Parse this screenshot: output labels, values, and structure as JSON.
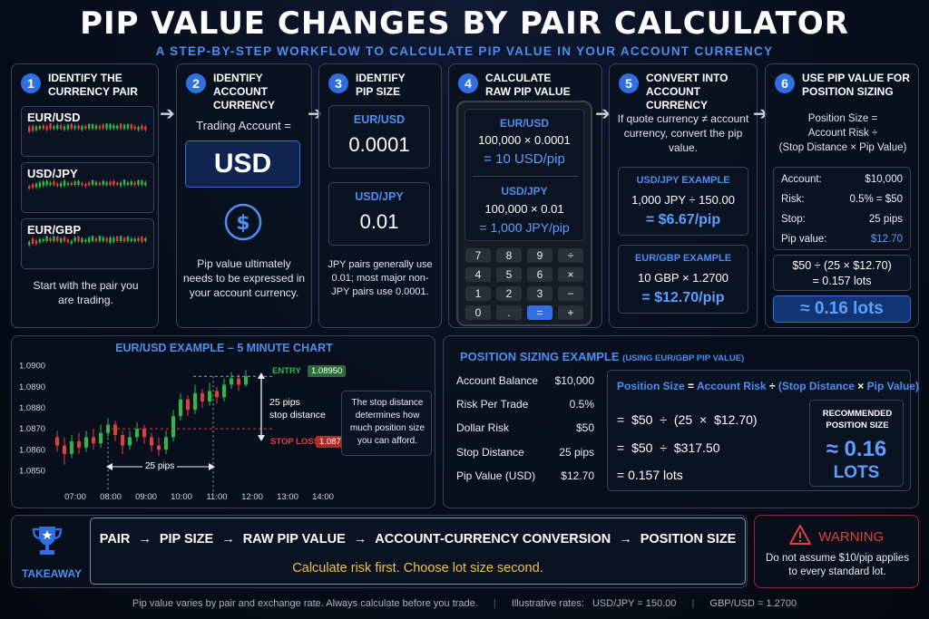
{
  "title": "PIP VALUE CHANGES BY PAIR CALCULATOR",
  "subtitle": "A STEP-BY-STEP WORKFLOW TO CALCULATE PIP VALUE IN YOUR ACCOUNT CURRENCY",
  "steps": [
    {
      "num": "1",
      "title": "IDENTIFY THE\nCURRENCY PAIR",
      "pairs": [
        "EUR/USD",
        "USD/JPY",
        "EUR/GBP"
      ],
      "note": "Start with the pair you are trading."
    },
    {
      "num": "2",
      "title": "IDENTIFY\nACCOUNT CURRENCY",
      "label": "Trading Account =",
      "currency": "USD",
      "icon": "dollar-icon",
      "note": "Pip value ultimately needs to be expressed in your account currency."
    },
    {
      "num": "3",
      "title": "IDENTIFY\nPIP SIZE",
      "pair1": "EUR/USD",
      "size1": "0.0001",
      "pair2": "USD/JPY",
      "size2": "0.01",
      "note": "JPY pairs generally use 0.01; most major non-JPY pairs use 0.0001."
    },
    {
      "num": "4",
      "title": "CALCULATE\nRAW PIP VALUE",
      "pair1": "EUR/USD",
      "calc1": "100,000 × 0.0001",
      "result1": "= 10 USD/pip",
      "pair2": "USD/JPY",
      "calc2": "100,000 × 0.01",
      "result2": "= 1,000 JPY/pip",
      "keys": [
        "7",
        "8",
        "9",
        "÷",
        "4",
        "5",
        "6",
        "×",
        "1",
        "2",
        "3",
        "−",
        "0",
        ".",
        "=",
        "+"
      ]
    },
    {
      "num": "5",
      "title": "CONVERT INTO\nACCOUNT CURRENCY",
      "note": "If quote currency ≠ account currency, convert the pip value.",
      "ex1_title": "USD/JPY EXAMPLE",
      "ex1_calc": "1,000 JPY ÷ 150.00",
      "ex1_result": "= $6.67/pip",
      "ex2_title": "EUR/GBP EXAMPLE",
      "ex2_calc": "10 GBP × 1.2700",
      "ex2_result": "= $12.70/pip"
    },
    {
      "num": "6",
      "title": "USE PIP VALUE FOR\nPOSITION SIZING",
      "formula1": "Position Size =",
      "formula2": "Account Risk ÷",
      "formula3": "(Stop Distance × Pip Value)",
      "rows": [
        {
          "label": "Account:",
          "value": "$10,000"
        },
        {
          "label": "Risk:",
          "value": "0.5% = $50"
        },
        {
          "label": "Stop:",
          "value": "25 pips"
        },
        {
          "label": "Pip value:",
          "value": "$12.70"
        }
      ],
      "calc1": "$50 ÷ (25 × $12.70)",
      "calc2": "= 0.157 lots",
      "result": "≈ 0.16 lots"
    }
  ],
  "example_chart": {
    "title": "EUR/USD EXAMPLE – 5 MINUTE CHART",
    "entry_label": "ENTRY",
    "entry_price": "1.08950",
    "stop_label": "STOP LOSS",
    "stop_price": "1.08700",
    "distance_label_1": "25 pips",
    "distance_label_2": "stop distance",
    "bottom_distance": "25 pips",
    "note": "The stop distance determines how much position size you can afford.",
    "y_ticks": [
      "1.0900",
      "1.0890",
      "1.0880",
      "1.0870",
      "1.0860",
      "1.0850"
    ],
    "x_ticks": [
      "07:00",
      "08:00",
      "09:00",
      "10:00",
      "11:00",
      "12:00",
      "13:00",
      "14:00"
    ]
  },
  "chart_data": {
    "type": "candlestick",
    "title": "EUR/USD EXAMPLE – 5 MINUTE CHART",
    "y_ticks": [
      1.09,
      1.089,
      1.088,
      1.087,
      1.086,
      1.085
    ],
    "ylim": [
      1.0845,
      1.0902
    ],
    "x_ticks": [
      "07:00",
      "08:00",
      "09:00",
      "10:00",
      "11:00",
      "12:00",
      "13:00",
      "14:00"
    ],
    "entry": 1.0895,
    "stop_loss": 1.087,
    "candles": [
      {
        "o": 1.0866,
        "c": 1.0862,
        "h": 1.0869,
        "l": 1.0859
      },
      {
        "o": 1.0862,
        "c": 1.0858,
        "h": 1.0866,
        "l": 1.0853
      },
      {
        "o": 1.0858,
        "c": 1.0864,
        "h": 1.0867,
        "l": 1.0856
      },
      {
        "o": 1.0864,
        "c": 1.0861,
        "h": 1.0868,
        "l": 1.0858
      },
      {
        "o": 1.0861,
        "c": 1.0866,
        "h": 1.0869,
        "l": 1.0859
      },
      {
        "o": 1.0866,
        "c": 1.0863,
        "h": 1.087,
        "l": 1.086
      },
      {
        "o": 1.0863,
        "c": 1.0868,
        "h": 1.0872,
        "l": 1.0861
      },
      {
        "o": 1.0868,
        "c": 1.0872,
        "h": 1.0875,
        "l": 1.0866
      },
      {
        "o": 1.0872,
        "c": 1.0867,
        "h": 1.0874,
        "l": 1.0864
      },
      {
        "o": 1.0867,
        "c": 1.0862,
        "h": 1.0869,
        "l": 1.0858
      },
      {
        "o": 1.0862,
        "c": 1.0866,
        "h": 1.0869,
        "l": 1.086
      },
      {
        "o": 1.0866,
        "c": 1.087,
        "h": 1.0873,
        "l": 1.0864
      },
      {
        "o": 1.087,
        "c": 1.0866,
        "h": 1.0872,
        "l": 1.0863
      },
      {
        "o": 1.0866,
        "c": 1.0862,
        "h": 1.0868,
        "l": 1.0859
      },
      {
        "o": 1.0862,
        "c": 1.086,
        "h": 1.0866,
        "l": 1.0857
      },
      {
        "o": 1.086,
        "c": 1.0866,
        "h": 1.0869,
        "l": 1.0858
      },
      {
        "o": 1.0866,
        "c": 1.0876,
        "h": 1.0879,
        "l": 1.0864
      },
      {
        "o": 1.0876,
        "c": 1.0884,
        "h": 1.0887,
        "l": 1.0874
      },
      {
        "o": 1.0884,
        "c": 1.0879,
        "h": 1.0886,
        "l": 1.0876
      },
      {
        "o": 1.0879,
        "c": 1.0887,
        "h": 1.0891,
        "l": 1.0877
      },
      {
        "o": 1.0887,
        "c": 1.0883,
        "h": 1.0889,
        "l": 1.088
      },
      {
        "o": 1.0883,
        "c": 1.0888,
        "h": 1.0892,
        "l": 1.0881
      },
      {
        "o": 1.0888,
        "c": 1.0885,
        "h": 1.089,
        "l": 1.0882
      },
      {
        "o": 1.0885,
        "c": 1.0891,
        "h": 1.0894,
        "l": 1.0883
      },
      {
        "o": 1.0891,
        "c": 1.0894,
        "h": 1.0897,
        "l": 1.0889
      },
      {
        "o": 1.0894,
        "c": 1.0891,
        "h": 1.0896,
        "l": 1.0888
      },
      {
        "o": 1.0891,
        "c": 1.0895,
        "h": 1.0898,
        "l": 1.089
      }
    ]
  },
  "position_example": {
    "title": "POSITION SIZING EXAMPLE",
    "title_note": "(USING EUR/GBP PIP VALUE)",
    "rows": [
      {
        "label": "Account Balance",
        "value": "$10,000"
      },
      {
        "label": "Risk Per Trade",
        "value": "0.5%"
      },
      {
        "label": "Dollar Risk",
        "value": "$50"
      },
      {
        "label": "Stop Distance",
        "value": "25 pips"
      },
      {
        "label": "Pip Value (USD)",
        "value": "$12.70"
      }
    ],
    "formula_a": "Position Size",
    "formula_eq": "=",
    "formula_b": "Account Risk",
    "formula_div": "÷",
    "formula_c": "(Stop Distance",
    "formula_x": "×",
    "formula_d": "Pip Value)",
    "line1": "= $50 ÷ (25 × $12.70)",
    "line2": "= $50 ÷ $317.50",
    "line3": "= 0.157 lots",
    "rec_title": "RECOMMENDED POSITION SIZE",
    "rec_value": "≈ 0.16",
    "rec_unit": "LOTS"
  },
  "takeaway": {
    "label": "TAKEAWAY",
    "icon": "trophy-icon",
    "flow": [
      "PAIR",
      "PIP SIZE",
      "RAW PIP VALUE",
      "ACCOUNT-CURRENCY CONVERSION",
      "POSITION SIZE"
    ],
    "arrow": "→",
    "slogan": "Calculate risk first. Choose lot size second."
  },
  "warning": {
    "title": "WARNING",
    "icon": "warning-icon",
    "text": "Do not assume $10/pip applies to every standard lot."
  },
  "footer": {
    "note": "Pip value varies by pair and exchange rate. Always calculate before you trade.",
    "rates_label": "Illustrative rates:",
    "rate1": "USD/JPY = 150.00",
    "rate2": "GBP/USD = 1.2700"
  },
  "colors": {
    "accent": "#2f6fe0",
    "blue_text": "#4e8ef0",
    "up": "#2fb84a",
    "down": "#e0413b",
    "gold": "#f0c040",
    "warning": "#e0413b"
  }
}
